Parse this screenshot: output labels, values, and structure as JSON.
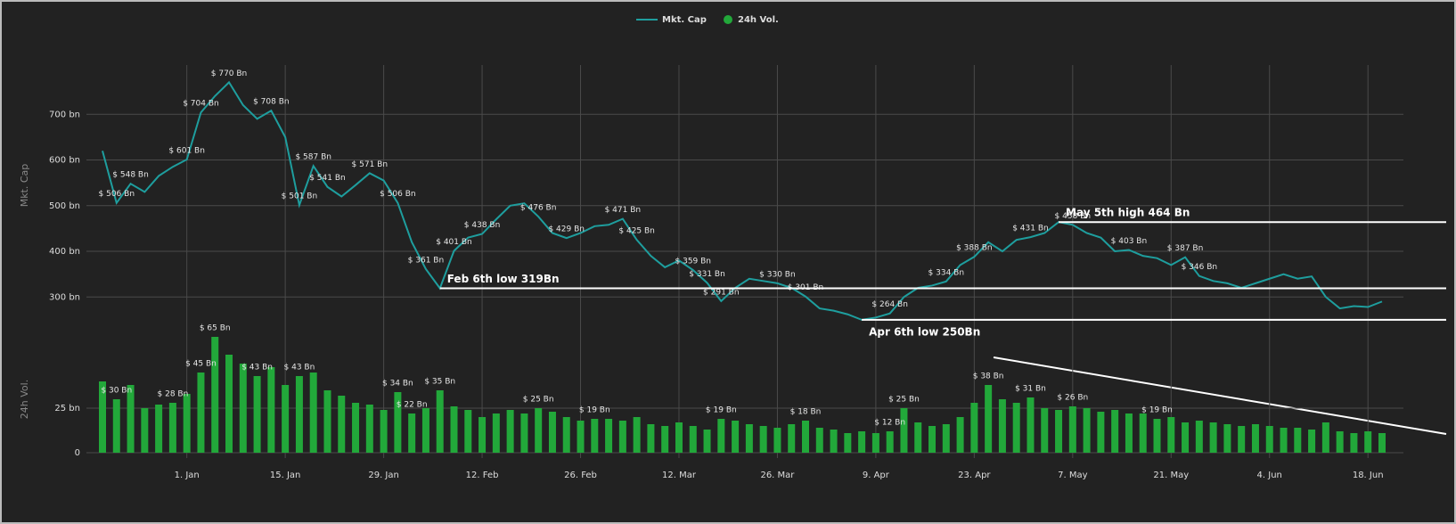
{
  "legend": [
    "Mkt. Cap",
    "24h Vol."
  ],
  "chart_data": [
    {
      "type": "line",
      "ylabel": "Mkt. Cap",
      "series": [
        {
          "name": "Mkt. Cap",
          "color": "#1e9e9e",
          "values": [
            620,
            506,
            548,
            530,
            565,
            585,
            601,
            704,
            740,
            770,
            720,
            690,
            708,
            650,
            501,
            587,
            541,
            520,
            545,
            571,
            555,
            506,
            420,
            361,
            319,
            401,
            430,
            438,
            470,
            500,
            505,
            476,
            440,
            429,
            440,
            455,
            458,
            471,
            425,
            390,
            365,
            380,
            359,
            331,
            291,
            320,
            340,
            335,
            330,
            320,
            301,
            275,
            270,
            262,
            250,
            255,
            264,
            300,
            320,
            325,
            334,
            370,
            388,
            420,
            400,
            425,
            431,
            440,
            464,
            458,
            440,
            430,
            400,
            403,
            390,
            385,
            370,
            387,
            346,
            335,
            330,
            320,
            330,
            340,
            350,
            340,
            345,
            300,
            275,
            280,
            278,
            290
          ],
          "value_labels": [
            null,
            "$ 506 Bn",
            "$ 548 Bn",
            null,
            null,
            null,
            "$ 601 Bn",
            "$ 704 Bn",
            null,
            "$ 770 Bn",
            null,
            null,
            "$ 708 Bn",
            null,
            "$ 501 Bn",
            "$ 587 Bn",
            "$ 541 Bn",
            null,
            null,
            "$ 571 Bn",
            null,
            "$ 506 Bn",
            null,
            "$ 361 Bn",
            null,
            "$ 401 Bn",
            null,
            "$ 438 Bn",
            null,
            null,
            null,
            "$ 476 Bn",
            null,
            "$ 429 Bn",
            null,
            null,
            null,
            "$ 471 Bn",
            "$ 425 Bn",
            null,
            null,
            null,
            "$ 359 Bn",
            "$ 331 Bn",
            "$ 291 Bn",
            null,
            null,
            null,
            "$ 330 Bn",
            null,
            "$ 301 Bn",
            null,
            null,
            null,
            null,
            null,
            "$ 264 Bn",
            null,
            null,
            null,
            "$ 334 Bn",
            null,
            "$ 388 Bn",
            null,
            null,
            null,
            "$ 431 Bn",
            null,
            null,
            "$ 458 Bn",
            null,
            null,
            null,
            "$ 403 Bn",
            null,
            null,
            null,
            "$ 387 Bn",
            "$ 346 Bn",
            null,
            null,
            null,
            null,
            null,
            null,
            null,
            null,
            null,
            null,
            null,
            null,
            null
          ]
        }
      ],
      "ylim": [
        240,
        800
      ],
      "yticks": [
        {
          "value": 300,
          "label": "300 bn"
        },
        {
          "value": 400,
          "label": "400 bn"
        },
        {
          "value": 500,
          "label": "500 bn"
        },
        {
          "value": 600,
          "label": "600 bn"
        },
        {
          "value": 700,
          "label": "700 bn"
        }
      ],
      "grid": true,
      "annotations": [
        {
          "text": "Feb 6th low 319Bn",
          "value": 319
        },
        {
          "text": "Apr 6th low 250Bn",
          "value": 250
        },
        {
          "text": "May 5th high 464 Bn",
          "value": 464
        }
      ]
    },
    {
      "type": "bar",
      "ylabel": "24h Vol.",
      "categories": [
        null,
        null,
        null,
        null,
        null,
        null,
        "1. Jan",
        null,
        null,
        null,
        null,
        null,
        null,
        "15. Jan",
        null,
        null,
        null,
        null,
        null,
        null,
        "29. Jan",
        null,
        null,
        null,
        null,
        null,
        null,
        "12. Feb",
        null,
        null,
        null,
        null,
        null,
        null,
        "26. Feb",
        null,
        null,
        null,
        null,
        null,
        null,
        "12. Mar",
        null,
        null,
        null,
        null,
        null,
        null,
        "26. Mar",
        null,
        null,
        null,
        null,
        null,
        null,
        "9. Apr",
        null,
        null,
        null,
        null,
        null,
        null,
        "23. Apr",
        null,
        null,
        null,
        null,
        null,
        null,
        "7. May",
        null,
        null,
        null,
        null,
        null,
        null,
        "21. May",
        null,
        null,
        null,
        null,
        null,
        null,
        "4. Jun",
        null,
        null,
        null,
        null,
        null,
        null,
        "18. Jun",
        null
      ],
      "series": [
        {
          "name": "24h Vol.",
          "color": "#22a83a",
          "values": [
            40,
            30,
            38,
            25,
            27,
            28,
            33,
            45,
            65,
            55,
            50,
            43,
            48,
            38,
            43,
            45,
            35,
            32,
            28,
            27,
            24,
            34,
            22,
            25,
            35,
            26,
            24,
            20,
            22,
            24,
            22,
            25,
            23,
            20,
            18,
            19,
            19,
            18,
            20,
            16,
            15,
            17,
            15,
            13,
            19,
            18,
            16,
            15,
            14,
            16,
            18,
            14,
            13,
            11,
            12,
            11,
            12,
            25,
            17,
            15,
            16,
            20,
            28,
            38,
            30,
            28,
            31,
            25,
            24,
            26,
            25,
            23,
            24,
            22,
            22,
            19,
            20,
            17,
            18,
            17,
            16,
            15,
            16,
            15,
            14,
            14,
            13,
            17,
            12,
            11,
            12,
            11
          ],
          "value_labels": [
            null,
            "$ 30 Bn",
            null,
            null,
            null,
            "$ 28 Bn",
            null,
            "$ 45 Bn",
            "$ 65 Bn",
            null,
            null,
            "$ 43 Bn",
            null,
            null,
            "$ 43 Bn",
            null,
            null,
            null,
            null,
            null,
            null,
            "$ 34 Bn",
            "$ 22 Bn",
            null,
            "$ 35 Bn",
            null,
            null,
            null,
            null,
            null,
            null,
            "$ 25 Bn",
            null,
            null,
            null,
            "$ 19 Bn",
            null,
            null,
            null,
            null,
            null,
            null,
            null,
            null,
            "$ 19 Bn",
            null,
            null,
            null,
            null,
            null,
            "$ 18 Bn",
            null,
            null,
            null,
            null,
            null,
            "$ 12 Bn",
            "$ 25 Bn",
            null,
            null,
            null,
            null,
            null,
            "$ 38 Bn",
            null,
            null,
            "$ 31 Bn",
            null,
            null,
            "$ 26 Bn",
            null,
            null,
            null,
            null,
            null,
            "$ 19 Bn",
            null,
            null,
            null,
            null,
            null,
            null,
            null,
            null,
            null,
            null,
            null,
            null,
            null,
            null,
            null,
            null
          ]
        }
      ],
      "ylim": [
        0,
        68
      ],
      "yticks": [
        0,
        {
          "value": 25,
          "label": "25 bn"
        }
      ],
      "grid": true
    }
  ]
}
